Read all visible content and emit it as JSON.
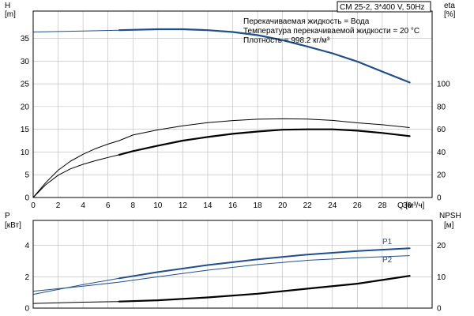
{
  "chart_data": [
    {
      "id": "performance",
      "type": "line",
      "title": "CM 25-2, 3*400 V, 50Hz",
      "annotations": [
        "Перекачиваемая жидкость = Вода",
        "Температура перекачиваемой жидкости = 20 °C",
        "Плотность = 998.2 кг/м³"
      ],
      "xlabel": "Q [м³/ч]",
      "x_ticks": [
        "0",
        "2",
        "4",
        "6",
        "8",
        "10",
        "12",
        "14",
        "16",
        "18",
        "20",
        "22",
        "24",
        "26",
        "28",
        "30"
      ],
      "xlim": [
        0,
        32
      ],
      "y_left": {
        "label_top": "H",
        "label_unit": "[m]",
        "lim": [
          0,
          41
        ],
        "ticks": [
          "0",
          "5",
          "10",
          "15",
          "20",
          "25",
          "30",
          "35"
        ]
      },
      "y_right": {
        "label_top": "eta",
        "label_unit": "[%]",
        "lim": [
          0,
          164
        ],
        "ticks": [
          "0",
          "20",
          "40",
          "60",
          "80",
          "100"
        ]
      },
      "grid": true,
      "series": [
        {
          "axis": "left",
          "color": "#1f4e8c",
          "lw": 2.2,
          "start": 6.9,
          "x": [
            0,
            4,
            6.9,
            10,
            12,
            14,
            16,
            18,
            20,
            22,
            24,
            26,
            28,
            30.2
          ],
          "y": [
            36.4,
            36.6,
            36.8,
            37.0,
            37.0,
            36.8,
            36.4,
            35.7,
            34.6,
            33.2,
            31.7,
            29.9,
            27.7,
            25.3
          ]
        },
        {
          "axis": "right",
          "color": "#000000",
          "lw": 1.1,
          "start": 6.9,
          "x": [
            0,
            1,
            2,
            3,
            4,
            5,
            6,
            6.9,
            8,
            10,
            12,
            14,
            16,
            18,
            20,
            22,
            24,
            26,
            28,
            30.2
          ],
          "y": [
            0,
            13,
            24,
            32,
            38,
            43,
            47,
            50,
            55,
            59.5,
            63,
            65.8,
            67.7,
            68.9,
            69.2,
            69.0,
            67.8,
            65.7,
            64.0,
            61.5
          ]
        },
        {
          "axis": "left",
          "color": "#000000",
          "lw": 2.2,
          "start": 6.9,
          "x": [
            0,
            1,
            2,
            3,
            4,
            5,
            6,
            6.9,
            8,
            10,
            12,
            14,
            16,
            18,
            20,
            22,
            24,
            26,
            28,
            30.2
          ],
          "y": [
            0,
            2.8,
            4.9,
            6.3,
            7.3,
            8.1,
            8.8,
            9.4,
            10.2,
            11.4,
            12.5,
            13.3,
            14.0,
            14.5,
            14.9,
            15.0,
            15.0,
            14.7,
            14.2,
            13.5
          ]
        }
      ]
    },
    {
      "id": "power-npsh",
      "type": "line",
      "xlim": [
        0,
        32
      ],
      "y_left": {
        "label_top": "P",
        "label_unit": "[кВт]",
        "lim": [
          0,
          5.6
        ],
        "ticks": [
          "0",
          "2",
          "4"
        ]
      },
      "y_right": {
        "label_top": "NPSH",
        "label_unit": "[м]",
        "lim": [
          0,
          28
        ],
        "ticks": [
          "0",
          "10",
          "20"
        ]
      },
      "grid": true,
      "series": [
        {
          "name": "P1",
          "axis": "left",
          "color": "#1f4e8c",
          "lw": 2.0,
          "start": 6.9,
          "x": [
            0,
            4,
            6.9,
            10,
            14,
            18,
            22,
            26,
            30.2
          ],
          "y": [
            0.88,
            1.5,
            1.9,
            2.3,
            2.75,
            3.12,
            3.42,
            3.65,
            3.82
          ]
        },
        {
          "name": "P2",
          "axis": "left",
          "color": "#1f4e8c",
          "lw": 1.0,
          "start": 6.9,
          "x": [
            0,
            4,
            6.9,
            10,
            14,
            18,
            22,
            26,
            30.2
          ],
          "y": [
            1.08,
            1.4,
            1.66,
            2.0,
            2.42,
            2.78,
            3.05,
            3.22,
            3.35
          ]
        },
        {
          "axis": "right",
          "color": "#000000",
          "lw": 2.2,
          "start": 6.9,
          "x": [
            0,
            4,
            6.9,
            10,
            14,
            18,
            22,
            26,
            30.2
          ],
          "y": [
            1.5,
            1.9,
            2.1,
            2.5,
            3.4,
            4.6,
            6.2,
            7.8,
            10.3
          ]
        }
      ]
    }
  ]
}
